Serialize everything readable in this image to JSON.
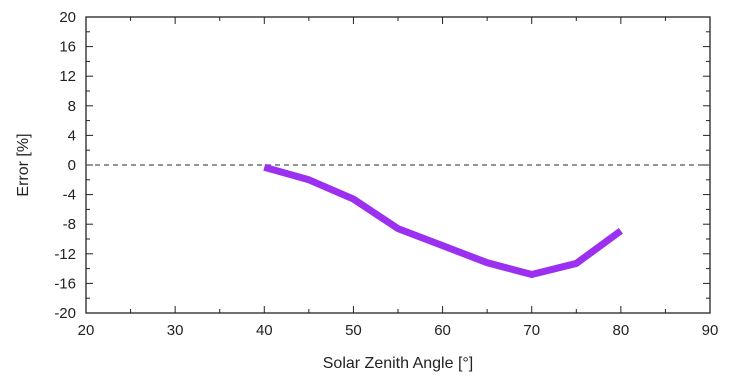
{
  "chart_data": {
    "type": "line",
    "title": "",
    "xlabel": "Solar Zenith Angle [°]",
    "ylabel": "Error [%]",
    "xlim": [
      20,
      90
    ],
    "ylim": [
      -20,
      20
    ],
    "x_ticks": [
      20,
      30,
      40,
      50,
      60,
      70,
      80,
      90
    ],
    "y_ticks": [
      20,
      16,
      12,
      8,
      4,
      0,
      -4,
      -8,
      -12,
      -16,
      -20
    ],
    "grid": false,
    "reference_line": {
      "y": 0,
      "style": "dashed",
      "color": "#555555"
    },
    "series": [
      {
        "color": "#9b30f0",
        "x": [
          40,
          45,
          50,
          55,
          60,
          65,
          70,
          75,
          80
        ],
        "y": [
          -0.3,
          -2.0,
          -4.6,
          -8.6,
          -10.9,
          -13.2,
          -14.8,
          -13.3,
          -8.9
        ]
      }
    ]
  }
}
